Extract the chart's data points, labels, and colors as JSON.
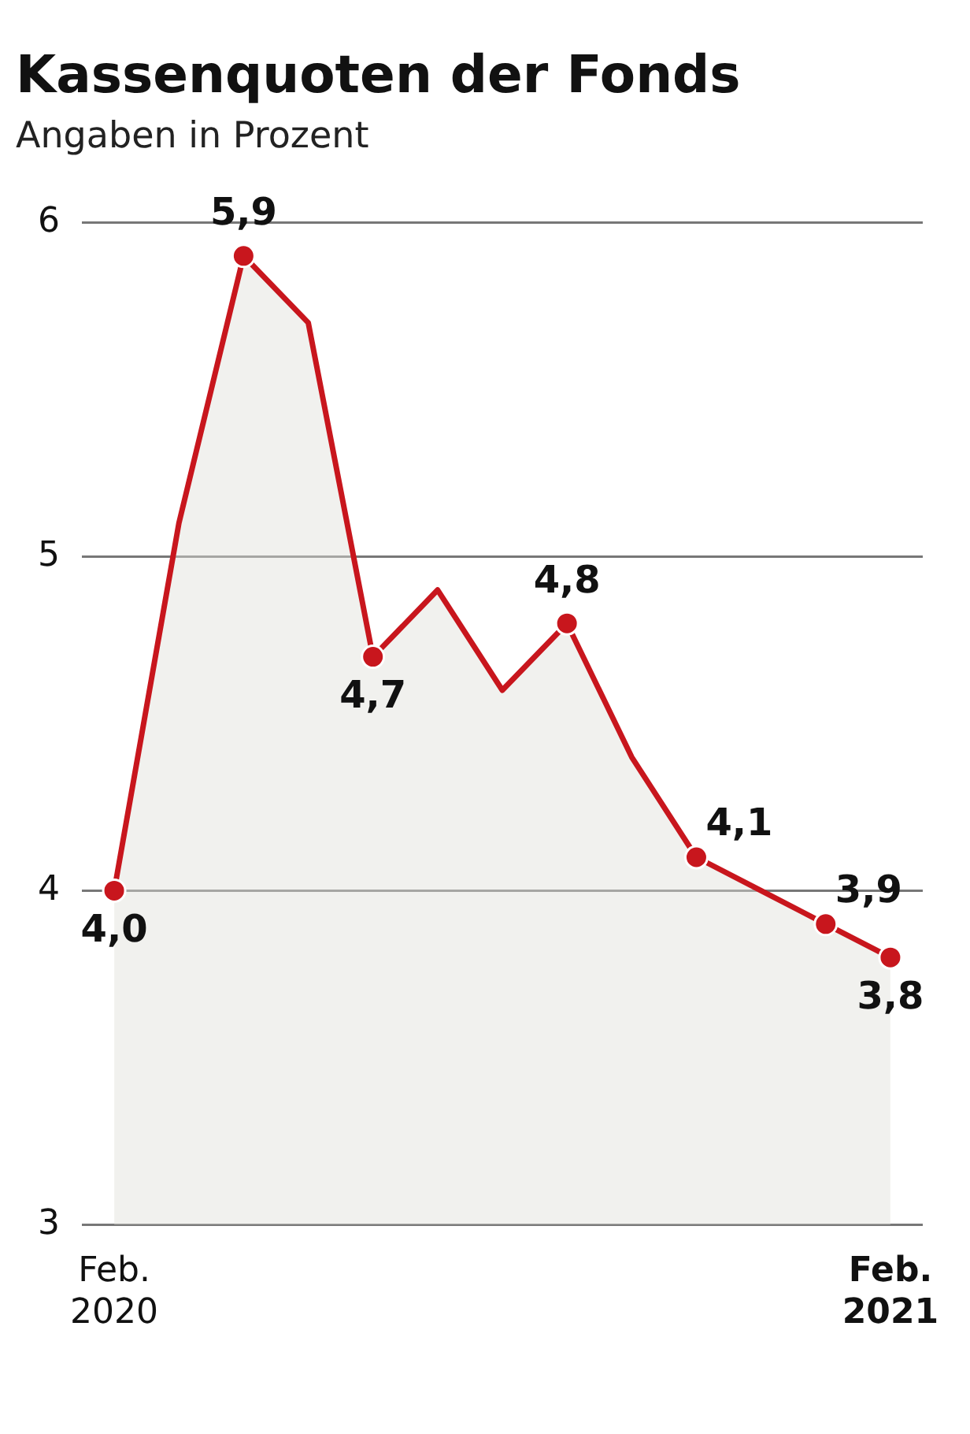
{
  "chart_data": {
    "type": "area",
    "title": "Kassenquoten der Fonds",
    "subtitle": "Angaben in Prozent",
    "categories": [
      "Feb. 2020",
      null,
      null,
      null,
      null,
      null,
      null,
      null,
      null,
      null,
      null,
      null,
      "Feb. 2021"
    ],
    "series": [
      {
        "color": "#c8161d",
        "values": [
          4.0,
          5.1,
          5.9,
          5.7,
          4.7,
          4.9,
          4.6,
          4.8,
          4.4,
          4.1,
          4.0,
          3.9,
          3.8
        ],
        "value_labels": [
          "4,0",
          null,
          "5,9",
          null,
          "4,7",
          null,
          null,
          "4,8",
          null,
          "4,1",
          null,
          "3,9",
          "3,8"
        ]
      }
    ],
    "ylim": [
      3,
      6
    ],
    "yticks": [
      3,
      4,
      5,
      6
    ],
    "grid": "y",
    "legend": false,
    "marker": "circle"
  }
}
